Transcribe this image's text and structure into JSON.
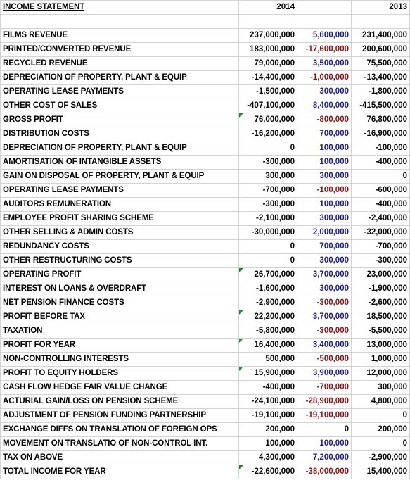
{
  "header": {
    "title": "INCOME STATEMENT",
    "year_current": "2014",
    "year_diff": "",
    "year_prior": "2013"
  },
  "colors": {
    "positive_variance": "#1f1f8c",
    "negative_variance": "#8b1414",
    "comment_marker": "#1e8a2a",
    "gridline": "#d4d4d4"
  },
  "rows": [
    {
      "label": "FILMS REVENUE",
      "y2014": "237,000,000",
      "diff": "5,600,000",
      "diff_sign": "pos",
      "y2013": "231,400,000",
      "flag": false
    },
    {
      "label": "PRINTED/CONVERTED REVENUE",
      "y2014": "183,000,000",
      "diff": "-17,600,000",
      "diff_sign": "neg",
      "y2013": "200,600,000",
      "flag": false
    },
    {
      "label": "RECYCLED REVENUE",
      "y2014": "79,000,000",
      "diff": "3,500,000",
      "diff_sign": "pos",
      "y2013": "75,500,000",
      "flag": false
    },
    {
      "label": "DEPRECIATION OF PROPERTY, PLANT & EQUIP",
      "y2014": "-14,400,000",
      "diff": "-1,000,000",
      "diff_sign": "neg",
      "y2013": "-13,400,000",
      "flag": false
    },
    {
      "label": "OPERATING LEASE PAYMENTS",
      "y2014": "-1,500,000",
      "diff": "300,000",
      "diff_sign": "pos",
      "y2013": "-1,800,000",
      "flag": false
    },
    {
      "label": "OTHER COST OF SALES",
      "y2014": "-407,100,000",
      "diff": "8,400,000",
      "diff_sign": "pos",
      "y2013": "-415,500,000",
      "flag": false
    },
    {
      "label": "GROSS PROFIT",
      "y2014": "76,000,000",
      "diff": "-800,000",
      "diff_sign": "neg",
      "y2013": "76,800,000",
      "flag": true
    },
    {
      "label": "DISTRIBUTION COSTS",
      "y2014": "-16,200,000",
      "diff": "700,000",
      "diff_sign": "pos",
      "y2013": "-16,900,000",
      "flag": false
    },
    {
      "label": "DEPRECIATION OF PROPERTY, PLANT & EQUIP",
      "y2014": "0",
      "diff": "100,000",
      "diff_sign": "pos",
      "y2013": "-100,000",
      "flag": false
    },
    {
      "label": "AMORTISATION OF INTANGIBLE ASSETS",
      "y2014": "-300,000",
      "diff": "100,000",
      "diff_sign": "pos",
      "y2013": "-400,000",
      "flag": false
    },
    {
      "label": "GAIN ON DISPOSAL OF PROPERTY, PLANT & EQUIP",
      "y2014": "300,000",
      "diff": "300,000",
      "diff_sign": "pos",
      "y2013": "0",
      "flag": false
    },
    {
      "label": "OPERATING LEASE PAYMENTS",
      "y2014": "-700,000",
      "diff": "-100,000",
      "diff_sign": "neg",
      "y2013": "-600,000",
      "flag": false
    },
    {
      "label": "AUDITORS REMUNERATION",
      "y2014": "-300,000",
      "diff": "100,000",
      "diff_sign": "pos",
      "y2013": "-400,000",
      "flag": false
    },
    {
      "label": "EMPLOYEE PROFIT SHARING SCHEME",
      "y2014": "-2,100,000",
      "diff": "300,000",
      "diff_sign": "pos",
      "y2013": "-2,400,000",
      "flag": false
    },
    {
      "label": "OTHER SELLING & ADMIN COSTS",
      "y2014": "-30,000,000",
      "diff": "2,000,000",
      "diff_sign": "pos",
      "y2013": "-32,000,000",
      "flag": false
    },
    {
      "label": "REDUNDANCY COSTS",
      "y2014": "0",
      "diff": "700,000",
      "diff_sign": "pos",
      "y2013": "-700,000",
      "flag": false
    },
    {
      "label": "OTHER RESTRUCTURING COSTS",
      "y2014": "0",
      "diff": "300,000",
      "diff_sign": "pos",
      "y2013": "-300,000",
      "flag": false
    },
    {
      "label": "OPERATING PROFIT",
      "y2014": "26,700,000",
      "diff": "3,700,000",
      "diff_sign": "pos",
      "y2013": "23,000,000",
      "flag": true
    },
    {
      "label": "INTEREST ON LOANS & OVERDRAFT",
      "y2014": "-1,600,000",
      "diff": "300,000",
      "diff_sign": "pos",
      "y2013": "-1,900,000",
      "flag": false
    },
    {
      "label": "NET PENSION FINANCE COSTS",
      "y2014": "-2,900,000",
      "diff": "-300,000",
      "diff_sign": "neg",
      "y2013": "-2,600,000",
      "flag": false
    },
    {
      "label": "PROFIT BEFORE TAX",
      "y2014": "22,200,000",
      "diff": "3,700,000",
      "diff_sign": "pos",
      "y2013": "18,500,000",
      "flag": true
    },
    {
      "label": "TAXATION",
      "y2014": "-5,800,000",
      "diff": "-300,000",
      "diff_sign": "neg",
      "y2013": "-5,500,000",
      "flag": false
    },
    {
      "label": "PROFIT FOR YEAR",
      "y2014": "16,400,000",
      "diff": "3,400,000",
      "diff_sign": "pos",
      "y2013": "13,000,000",
      "flag": true
    },
    {
      "label": "NON-CONTROLLING INTERESTS",
      "y2014": "500,000",
      "diff": "-500,000",
      "diff_sign": "neg",
      "y2013": "1,000,000",
      "flag": false
    },
    {
      "label": "PROFIT TO EQUITY HOLDERS",
      "y2014": "15,900,000",
      "diff": "3,900,000",
      "diff_sign": "pos",
      "y2013": "12,000,000",
      "flag": true
    },
    {
      "label": "CASH FLOW HEDGE FAIR VALUE CHANGE",
      "y2014": "-400,000",
      "diff": "-700,000",
      "diff_sign": "neg",
      "y2013": "300,000",
      "flag": false
    },
    {
      "label": "ACTURIAL GAIN/LOSS ON PENSION SCHEME",
      "y2014": "-24,100,000",
      "diff": "-28,900,000",
      "diff_sign": "neg",
      "y2013": "4,800,000",
      "flag": false
    },
    {
      "label": "ADJUSTMENT OF PENSION FUNDING PARTNERSHIP",
      "y2014": "-19,100,000",
      "diff": "-19,100,000",
      "diff_sign": "neg",
      "y2013": "0",
      "flag": false
    },
    {
      "label": "EXCHANGE DIFFS ON TRANSLATION OF FOREIGN OPS",
      "y2014": "200,000",
      "diff": "0",
      "diff_sign": "zero",
      "y2013": "200,000",
      "flag": false
    },
    {
      "label": "MOVEMENT ON TRANSLATIO OF NON-CONTROL INT.",
      "y2014": "100,000",
      "diff": "100,000",
      "diff_sign": "pos",
      "y2013": "0",
      "flag": false
    },
    {
      "label": "TAX ON ABOVE",
      "y2014": "4,300,000",
      "diff": "7,200,000",
      "diff_sign": "pos",
      "y2013": "-2,900,000",
      "flag": false
    },
    {
      "label": "TOTAL INCOME FOR YEAR",
      "y2014": "-22,600,000",
      "diff": "-38,000,000",
      "diff_sign": "neg",
      "y2013": "15,400,000",
      "flag": true
    }
  ]
}
